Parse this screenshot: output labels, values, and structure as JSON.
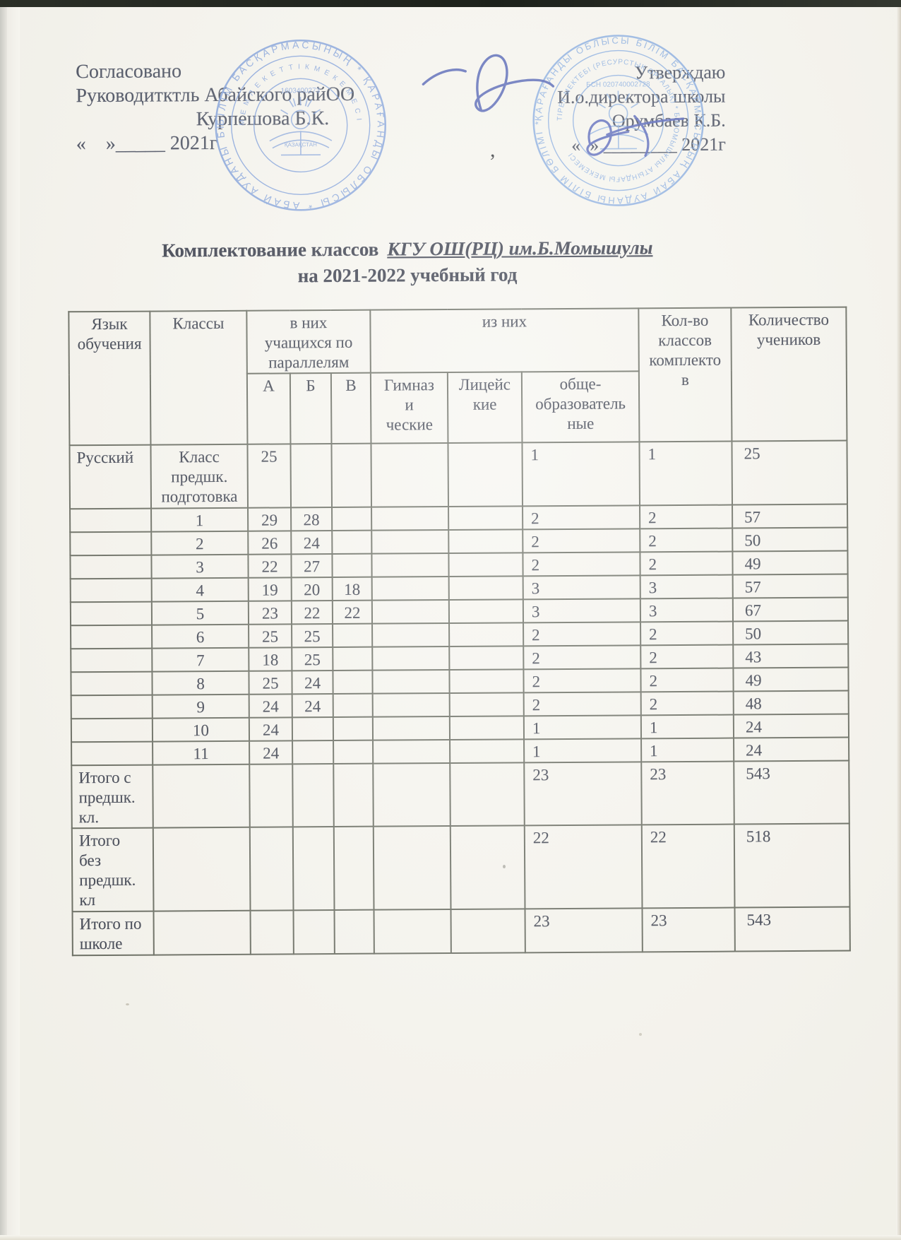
{
  "approval_left": {
    "lines": [
      "Согласовано",
      "Руководитктль Абайского райОО",
      "Курпешова Б.К.",
      "«    »_____ 2021г"
    ]
  },
  "approval_right": {
    "lines": [
      "Утверждаю",
      "И.о.директора школы",
      "Орумбаев К.Б.",
      "«  » ________ 2021г"
    ]
  },
  "stray_mark": ",",
  "title": {
    "line1_main": "Комплектование классов",
    "line1_school": "КГУ ОШ(РЦ) им.Б.Момышулы",
    "line2": "на 2021-2022 учебный год"
  },
  "stamps": {
    "left": {
      "outer_text": "БІЛІМ БАСҚАРМАСЫНЫҢ * ҚАРАҒАНДЫ ОБЛЫСЫ * АБАЙ АУДАНЫ БІЛІМ ЕКЕМЕСІ *",
      "inner_text": "М Е М Л Е К Е Т Т І К   М Е К Е М Е С І",
      "number": "1603400273",
      "center_text": "ҚАЗАҚСТАН"
    },
    "right": {
      "outer_text": "ҚАРАҒАНДЫ ОБЛЫСЫ БІЛІМ БАСҚАРМАСЫНЫҢ АБАЙ АУДАНЫ БІЛІМ БӨЛІМІ * КОММУНАЛДЫҚ *",
      "inner_text": "ТІРЕК МЕКТЕБІ (РЕСУРСТЫҚ ОРТАЛЫҚ) * Б.МОМЫШҰЛЫ АТЫНДАҒЫ МЕКЕМЕСІ",
      "number": "БСН 020740002728",
      "center_text": ""
    }
  },
  "table": {
    "header": {
      "col_language": "Язык\nобучения",
      "col_classes": "Классы",
      "col_parallel_group": "в них\nучащихся по\nпараллелям",
      "col_iznikh_group": "из них",
      "col_a": "А",
      "col_b": "Б",
      "col_v": "В",
      "col_gymnasium": "Гимназ\nи\nческие",
      "col_lyceum": "Лицейс\nкие",
      "col_general": "обще-\nобразователь\nные",
      "col_count_classes": "Кол-во\nклассов\nкомплекто\nв",
      "col_count_students": "Количество\nучеников"
    },
    "rows": [
      [
        "Русский",
        "Класс\nпредшк.\nподготовка",
        "25",
        "",
        "",
        "",
        "",
        "1",
        "1",
        "25"
      ],
      [
        "",
        "1",
        "29",
        "28",
        "",
        "",
        "",
        "2",
        "2",
        "57"
      ],
      [
        "",
        "2",
        "26",
        "24",
        "",
        "",
        "",
        "2",
        "2",
        "50"
      ],
      [
        "",
        "3",
        "22",
        "27",
        "",
        "",
        "",
        "2",
        "2",
        "49"
      ],
      [
        "",
        "4",
        "19",
        "20",
        "18",
        "",
        "",
        "3",
        "3",
        "57"
      ],
      [
        "",
        "5",
        "23",
        "22",
        "22",
        "",
        "",
        "3",
        "3",
        "67"
      ],
      [
        "",
        "6",
        "25",
        "25",
        "",
        "",
        "",
        "2",
        "2",
        "50"
      ],
      [
        "",
        "7",
        "18",
        "25",
        "",
        "",
        "",
        "2",
        "2",
        "43"
      ],
      [
        "",
        "8",
        "25",
        "24",
        "",
        "",
        "",
        "2",
        "2",
        "49"
      ],
      [
        "",
        "9",
        "24",
        "24",
        "",
        "",
        "",
        "2",
        "2",
        "48"
      ],
      [
        "",
        "10",
        "24",
        "",
        "",
        "",
        "",
        "1",
        "1",
        "24"
      ],
      [
        "",
        "11",
        "24",
        "",
        "",
        "",
        "",
        "1",
        "1",
        "24"
      ],
      [
        "Итого с\nпредшк.\nкл.",
        "",
        "",
        "",
        "",
        "",
        "",
        "23",
        "23",
        "543"
      ],
      [
        "Итого\nбез\nпредшк.\nкл",
        "",
        "",
        "",
        "",
        "",
        "",
        "22",
        "22",
        "518"
      ],
      [
        "Итого по\nшколе",
        "",
        "",
        "",
        "",
        "",
        "",
        "23",
        "23",
        "543"
      ]
    ]
  }
}
